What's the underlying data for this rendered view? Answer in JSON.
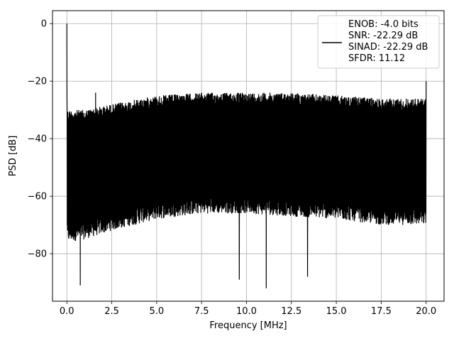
{
  "chart_data": {
    "type": "line",
    "xlabel": "Frequency [MHz]",
    "ylabel": "PSD [dB]",
    "xlim": [
      -0.8,
      21.0
    ],
    "ylim": [
      -96.5,
      4.5
    ],
    "xticks": [
      0.0,
      2.5,
      5.0,
      7.5,
      10.0,
      12.5,
      15.0,
      17.5,
      20.0
    ],
    "xtick_labels": [
      "0.0",
      "2.5",
      "5.0",
      "7.5",
      "10.0",
      "12.5",
      "15.0",
      "17.5",
      "20.0"
    ],
    "yticks": [
      0,
      -20,
      -40,
      -60,
      -80
    ],
    "ytick_labels": [
      "0",
      "−20",
      "−40",
      "−60",
      "−80"
    ],
    "grid": true,
    "legend_position": "top-right",
    "series": [
      {
        "name": "ENOB: -4.0 bits\nSNR: -22.29 dB\nSINAD: -22.29 dB\nSFDR: 11.12",
        "color": "#000000",
        "fundamental": {
          "x": 0.0,
          "y": 0.0
        },
        "spurs": [
          {
            "x": 0.01,
            "y": -26
          },
          {
            "x": 1.6,
            "y": -24
          },
          {
            "x": 20.0,
            "y": -20
          }
        ],
        "noise_floor_envelope": {
          "upper_x": [
            0.0,
            1.0,
            2.5,
            5.0,
            7.5,
            10.0,
            12.5,
            15.0,
            17.5,
            20.0
          ],
          "upper_y": [
            -30,
            -30,
            -28,
            -25,
            -24,
            -24,
            -24,
            -25,
            -26,
            -26
          ],
          "lower_x": [
            0.0,
            1.0,
            2.5,
            5.0,
            7.5,
            10.0,
            12.5,
            15.0,
            17.5,
            20.0
          ],
          "lower_y": [
            -76,
            -75,
            -72,
            -68,
            -66,
            -66,
            -67,
            -68,
            -70,
            -70
          ]
        },
        "min_dips": [
          {
            "x": 0.75,
            "y": -91
          },
          {
            "x": 9.6,
            "y": -89
          },
          {
            "x": 11.1,
            "y": -92
          },
          {
            "x": 13.4,
            "y": -88
          }
        ]
      }
    ]
  }
}
